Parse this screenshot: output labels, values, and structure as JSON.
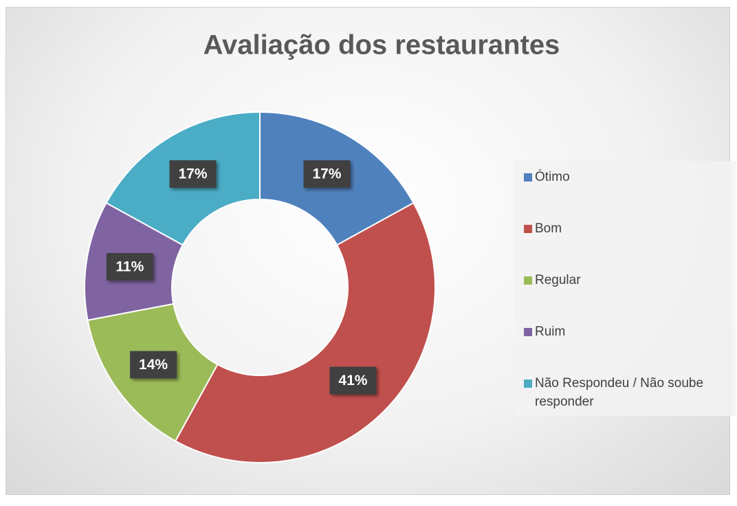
{
  "chart_data": {
    "type": "donut",
    "title": "Avaliação dos restaurantes",
    "categories": [
      "Ótimo",
      "Bom",
      "Regular",
      "Ruim",
      "Não Respondeu / Não soube responder"
    ],
    "values": [
      17,
      41,
      14,
      11,
      17
    ],
    "value_labels": [
      "17%",
      "41%",
      "14%",
      "11%",
      "17%"
    ],
    "colors": [
      "#4f81bd",
      "#c0504d",
      "#9bbb59",
      "#8064a2",
      "#4bacc6"
    ],
    "legend": "right"
  }
}
